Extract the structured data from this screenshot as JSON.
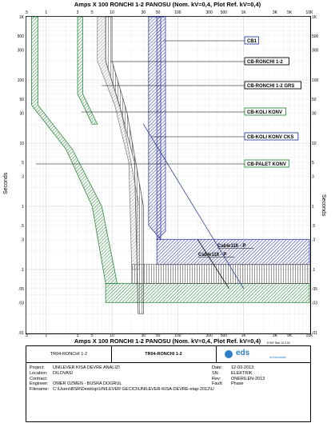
{
  "chart_data": {
    "type": "line",
    "title": "Amps  X  100   RONCHI 1-2 PANOSU (Nom. kV=0,4, Plot Ref. kV=0,4)",
    "xlabel": "Amps  X  100   RONCHI 1-2 PANOSU (Nom. kV=0,4, Plot Ref. kV=0,4)",
    "ylabel": "Seconds",
    "x_scale": "log",
    "y_scale": "log",
    "xlim": [
      0.5,
      10000
    ],
    "ylim": [
      0.01,
      1000
    ],
    "x_ticks": [
      ".5",
      "1",
      "3",
      "5",
      "10",
      "30",
      "50",
      "100",
      "300",
      "500",
      "1K",
      "3K",
      "5K",
      "10K"
    ],
    "y_ticks": [
      "1K",
      "500",
      "300",
      "100",
      "50",
      "30",
      "10",
      "5",
      "3",
      "1",
      ".5",
      ".3",
      ".1",
      ".05",
      ".03",
      ".01"
    ],
    "x_tick_values": [
      0.5,
      1,
      3,
      5,
      10,
      30,
      50,
      100,
      300,
      500,
      1000,
      3000,
      5000,
      10000
    ],
    "y_tick_values": [
      1000,
      500,
      300,
      100,
      50,
      30,
      10,
      5,
      3,
      1,
      0.5,
      0.3,
      0.1,
      0.05,
      0.03,
      0.01
    ],
    "grid": true,
    "series": [
      {
        "name": "CB1",
        "color": "#3b3fa8",
        "left": [
          [
            48,
            1000
          ],
          [
            48,
            0.3
          ]
        ],
        "right": [
          [
            65,
            1000
          ],
          [
            65,
            0.4
          ]
        ],
        "bottom": 0.12
      },
      {
        "name": "CB-RONCHI 1-2",
        "color": "#777777",
        "left": [
          [
            8,
            1000
          ],
          [
            8,
            200
          ],
          [
            13,
            40
          ],
          [
            22,
            5
          ],
          [
            25,
            0.02
          ]
        ],
        "right": [
          [
            10,
            1000
          ],
          [
            10,
            200
          ],
          [
            17,
            30
          ],
          [
            30,
            1
          ],
          [
            30,
            0.02
          ]
        ]
      },
      {
        "name": "CB-RONCHI 1-2 GRS",
        "color": "#999999",
        "left": [
          [
            6,
            1000
          ],
          [
            6,
            200
          ],
          [
            11,
            40
          ],
          [
            18,
            5
          ],
          [
            20,
            0.1
          ]
        ],
        "right": [
          [
            8,
            1000
          ],
          [
            8,
            200
          ],
          [
            14,
            30
          ],
          [
            26,
            1
          ],
          [
            26,
            0.1
          ]
        ]
      },
      {
        "name": "CB-KOLI KONV",
        "color": "#2e8b3e",
        "left": [
          [
            3,
            1000
          ],
          [
            3,
            60
          ],
          [
            5,
            20
          ]
        ],
        "right": [
          [
            3.6,
            1000
          ],
          [
            3.6,
            60
          ],
          [
            6,
            20
          ]
        ]
      },
      {
        "name": "CB-KOLI KONV CKS",
        "color": "#2e3f9f",
        "left": [
          [
            36,
            1000
          ],
          [
            36,
            0.5
          ]
        ],
        "right": [
          [
            55,
            1000
          ],
          [
            55,
            0.3
          ]
        ]
      },
      {
        "name": "CB-PALET KONV",
        "color": "#2e8b3e",
        "left": [
          [
            0.6,
            1000
          ],
          [
            0.6,
            40
          ],
          [
            2,
            8
          ],
          [
            5,
            1
          ],
          [
            8,
            0.06
          ]
        ],
        "right": [
          [
            0.75,
            1000
          ],
          [
            0.75,
            40
          ],
          [
            2.5,
            8
          ],
          [
            7,
            1
          ],
          [
            12,
            0.06
          ]
        ],
        "bottom_band": [
          0.03,
          0.06
        ]
      },
      {
        "name": "Cable116 - P",
        "color": "#2e3f9f",
        "line": [
          [
            30,
            20
          ],
          [
            1000,
            0.05
          ]
        ]
      },
      {
        "name": "Cable116 - P",
        "color": "#000000",
        "line": [
          [
            200,
            0.3
          ],
          [
            600,
            0.05
          ]
        ]
      }
    ],
    "legend": [
      {
        "label": "CB1",
        "color": "#2e3f9f"
      },
      {
        "label": "CB-RONCHI 1-2",
        "color": "#000000"
      },
      {
        "label": "CB-RONCHI 1-2 GRS",
        "color": "#000000"
      },
      {
        "label": "CB-KOLI KONV",
        "color": "#2e8b3e"
      },
      {
        "label": "CB-KOLI KONV CKS",
        "color": "#2e3f9f"
      },
      {
        "label": "CB-PALET KONV",
        "color": "#2e8b3e"
      }
    ],
    "annotations": [
      "Cable116 - P",
      "Cable116 - P"
    ]
  },
  "titleblock": {
    "left_header": "TR04-RONCHI 1-2",
    "center_header": "TR04-RONCHI 1-2",
    "logo": "eds",
    "logo_sub": "mühendislik",
    "project_label": "Project:",
    "project": "UNILEVER KISA DEVRE ANALIZI",
    "location_label": "Location:",
    "location": "DILOVASI",
    "contract_label": "Contract:",
    "contract": "",
    "engineer_label": "Engineer:",
    "engineer": "OMER OZMEN - BUSRA DOGRUL",
    "filename_label": "Filename:",
    "filename": "C:\\Users\\BSR\\Desktop\\UNILEVER GECICI\\UNILEVER-KISA-DEVRE-etap-2012\\U",
    "date_label": "Date:",
    "date": "12-03-2013",
    "sn_label": "SN:",
    "sn": "ELEKTRIK",
    "rev_label": "Rev:",
    "rev": "ONERILEN-2013",
    "fault_label": "Fault:",
    "fault": "Phase",
    "footer": "ETAP Star 12.0.0C"
  }
}
